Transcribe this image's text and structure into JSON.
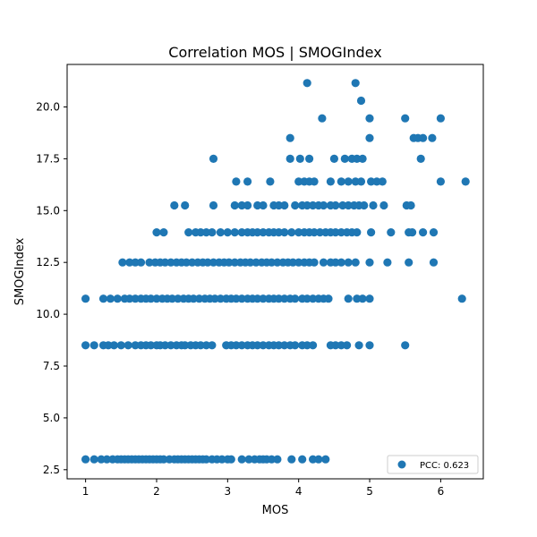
{
  "chart_data": {
    "type": "scatter",
    "title": "Correlation MOS | SMOGIndex",
    "xlabel": "MOS",
    "ylabel": "SMOGIndex",
    "xlim": [
      0.74,
      6.6
    ],
    "ylim": [
      2.06,
      22.05
    ],
    "xticks": [
      "1",
      "2",
      "3",
      "4",
      "5",
      "6"
    ],
    "yticks": [
      "2.5",
      "5.0",
      "7.5",
      "10.0",
      "12.5",
      "15.0",
      "17.5",
      "20.0"
    ],
    "grid": false,
    "legend": {
      "placement": "bottom-right",
      "entries": [
        "PCC: 0.623"
      ]
    },
    "color": "#1f77b4",
    "series": [
      {
        "points": [
          [
            1.0,
            3.0
          ],
          [
            1.12,
            3.0
          ],
          [
            1.22,
            3.0
          ],
          [
            1.3,
            3.0
          ],
          [
            1.38,
            3.0
          ],
          [
            1.45,
            3.0
          ],
          [
            1.5,
            3.0
          ],
          [
            1.55,
            3.0
          ],
          [
            1.6,
            3.0
          ],
          [
            1.65,
            3.0
          ],
          [
            1.7,
            3.0
          ],
          [
            1.75,
            3.0
          ],
          [
            1.8,
            3.0
          ],
          [
            1.85,
            3.0
          ],
          [
            1.9,
            3.0
          ],
          [
            1.95,
            3.0
          ],
          [
            2.0,
            3.0
          ],
          [
            2.05,
            3.0
          ],
          [
            2.1,
            3.0
          ],
          [
            2.18,
            3.0
          ],
          [
            2.25,
            3.0
          ],
          [
            2.3,
            3.0
          ],
          [
            2.35,
            3.0
          ],
          [
            2.4,
            3.0
          ],
          [
            2.45,
            3.0
          ],
          [
            2.5,
            3.0
          ],
          [
            2.55,
            3.0
          ],
          [
            2.6,
            3.0
          ],
          [
            2.65,
            3.0
          ],
          [
            2.7,
            3.0
          ],
          [
            2.78,
            3.0
          ],
          [
            2.85,
            3.0
          ],
          [
            2.92,
            3.0
          ],
          [
            3.0,
            3.0
          ],
          [
            3.05,
            3.0
          ],
          [
            3.2,
            3.0
          ],
          [
            3.3,
            3.0
          ],
          [
            3.38,
            3.0
          ],
          [
            3.45,
            3.0
          ],
          [
            3.5,
            3.0
          ],
          [
            3.55,
            3.0
          ],
          [
            3.62,
            3.0
          ],
          [
            3.7,
            3.0
          ],
          [
            3.9,
            3.0
          ],
          [
            4.05,
            3.0
          ],
          [
            4.2,
            3.0
          ],
          [
            4.28,
            3.0
          ],
          [
            4.38,
            3.0
          ],
          [
            1.0,
            8.5
          ],
          [
            1.12,
            8.5
          ],
          [
            1.25,
            8.5
          ],
          [
            1.32,
            8.5
          ],
          [
            1.4,
            8.5
          ],
          [
            1.5,
            8.5
          ],
          [
            1.6,
            8.5
          ],
          [
            1.7,
            8.5
          ],
          [
            1.78,
            8.5
          ],
          [
            1.85,
            8.5
          ],
          [
            1.92,
            8.5
          ],
          [
            2.0,
            8.5
          ],
          [
            2.05,
            8.5
          ],
          [
            2.12,
            8.5
          ],
          [
            2.2,
            8.5
          ],
          [
            2.28,
            8.5
          ],
          [
            2.35,
            8.5
          ],
          [
            2.4,
            8.5
          ],
          [
            2.48,
            8.5
          ],
          [
            2.55,
            8.5
          ],
          [
            2.62,
            8.5
          ],
          [
            2.7,
            8.5
          ],
          [
            2.78,
            8.5
          ],
          [
            2.98,
            8.5
          ],
          [
            3.05,
            8.5
          ],
          [
            3.12,
            8.5
          ],
          [
            3.2,
            8.5
          ],
          [
            3.28,
            8.5
          ],
          [
            3.35,
            8.5
          ],
          [
            3.42,
            8.5
          ],
          [
            3.5,
            8.5
          ],
          [
            3.58,
            8.5
          ],
          [
            3.65,
            8.5
          ],
          [
            3.72,
            8.5
          ],
          [
            3.8,
            8.5
          ],
          [
            3.88,
            8.5
          ],
          [
            3.95,
            8.5
          ],
          [
            4.05,
            8.5
          ],
          [
            4.12,
            8.5
          ],
          [
            4.2,
            8.5
          ],
          [
            4.45,
            8.5
          ],
          [
            4.52,
            8.5
          ],
          [
            4.6,
            8.5
          ],
          [
            4.68,
            8.5
          ],
          [
            4.85,
            8.5
          ],
          [
            5.0,
            8.5
          ],
          [
            5.5,
            8.5
          ],
          [
            1.0,
            10.75
          ],
          [
            1.25,
            10.75
          ],
          [
            1.35,
            10.75
          ],
          [
            1.45,
            10.75
          ],
          [
            1.55,
            10.75
          ],
          [
            1.62,
            10.75
          ],
          [
            1.7,
            10.75
          ],
          [
            1.78,
            10.75
          ],
          [
            1.85,
            10.75
          ],
          [
            1.92,
            10.75
          ],
          [
            2.0,
            10.75
          ],
          [
            2.08,
            10.75
          ],
          [
            2.15,
            10.75
          ],
          [
            2.22,
            10.75
          ],
          [
            2.3,
            10.75
          ],
          [
            2.38,
            10.75
          ],
          [
            2.45,
            10.75
          ],
          [
            2.52,
            10.75
          ],
          [
            2.6,
            10.75
          ],
          [
            2.68,
            10.75
          ],
          [
            2.75,
            10.75
          ],
          [
            2.82,
            10.75
          ],
          [
            2.9,
            10.75
          ],
          [
            2.98,
            10.75
          ],
          [
            3.05,
            10.75
          ],
          [
            3.12,
            10.75
          ],
          [
            3.2,
            10.75
          ],
          [
            3.28,
            10.75
          ],
          [
            3.35,
            10.75
          ],
          [
            3.42,
            10.75
          ],
          [
            3.5,
            10.75
          ],
          [
            3.58,
            10.75
          ],
          [
            3.65,
            10.75
          ],
          [
            3.72,
            10.75
          ],
          [
            3.8,
            10.75
          ],
          [
            3.88,
            10.75
          ],
          [
            3.95,
            10.75
          ],
          [
            4.05,
            10.75
          ],
          [
            4.12,
            10.75
          ],
          [
            4.2,
            10.75
          ],
          [
            4.28,
            10.75
          ],
          [
            4.35,
            10.75
          ],
          [
            4.42,
            10.75
          ],
          [
            4.7,
            10.75
          ],
          [
            4.82,
            10.75
          ],
          [
            4.9,
            10.75
          ],
          [
            5.0,
            10.75
          ],
          [
            6.3,
            10.75
          ],
          [
            1.52,
            12.5
          ],
          [
            1.62,
            12.5
          ],
          [
            1.7,
            12.5
          ],
          [
            1.78,
            12.5
          ],
          [
            1.9,
            12.5
          ],
          [
            1.98,
            12.5
          ],
          [
            2.05,
            12.5
          ],
          [
            2.12,
            12.5
          ],
          [
            2.2,
            12.5
          ],
          [
            2.28,
            12.5
          ],
          [
            2.35,
            12.5
          ],
          [
            2.42,
            12.5
          ],
          [
            2.5,
            12.5
          ],
          [
            2.58,
            12.5
          ],
          [
            2.65,
            12.5
          ],
          [
            2.72,
            12.5
          ],
          [
            2.8,
            12.5
          ],
          [
            2.88,
            12.5
          ],
          [
            2.95,
            12.5
          ],
          [
            3.02,
            12.5
          ],
          [
            3.1,
            12.5
          ],
          [
            3.18,
            12.5
          ],
          [
            3.25,
            12.5
          ],
          [
            3.32,
            12.5
          ],
          [
            3.4,
            12.5
          ],
          [
            3.48,
            12.5
          ],
          [
            3.55,
            12.5
          ],
          [
            3.62,
            12.5
          ],
          [
            3.7,
            12.5
          ],
          [
            3.78,
            12.5
          ],
          [
            3.85,
            12.5
          ],
          [
            3.92,
            12.5
          ],
          [
            4.0,
            12.5
          ],
          [
            4.08,
            12.5
          ],
          [
            4.15,
            12.5
          ],
          [
            4.22,
            12.5
          ],
          [
            4.35,
            12.5
          ],
          [
            4.45,
            12.5
          ],
          [
            4.52,
            12.5
          ],
          [
            4.6,
            12.5
          ],
          [
            4.7,
            12.5
          ],
          [
            4.8,
            12.5
          ],
          [
            5.0,
            12.5
          ],
          [
            5.25,
            12.5
          ],
          [
            5.55,
            12.5
          ],
          [
            5.9,
            12.5
          ],
          [
            2.0,
            13.95
          ],
          [
            2.1,
            13.95
          ],
          [
            2.45,
            13.95
          ],
          [
            2.55,
            13.95
          ],
          [
            2.62,
            13.95
          ],
          [
            2.7,
            13.95
          ],
          [
            2.78,
            13.95
          ],
          [
            2.9,
            13.95
          ],
          [
            3.0,
            13.95
          ],
          [
            3.1,
            13.95
          ],
          [
            3.2,
            13.95
          ],
          [
            3.28,
            13.95
          ],
          [
            3.35,
            13.95
          ],
          [
            3.42,
            13.95
          ],
          [
            3.5,
            13.95
          ],
          [
            3.58,
            13.95
          ],
          [
            3.65,
            13.95
          ],
          [
            3.72,
            13.95
          ],
          [
            3.8,
            13.95
          ],
          [
            3.9,
            13.95
          ],
          [
            4.0,
            13.95
          ],
          [
            4.08,
            13.95
          ],
          [
            4.15,
            13.95
          ],
          [
            4.22,
            13.95
          ],
          [
            4.3,
            13.95
          ],
          [
            4.38,
            13.95
          ],
          [
            4.45,
            13.95
          ],
          [
            4.52,
            13.95
          ],
          [
            4.6,
            13.95
          ],
          [
            4.68,
            13.95
          ],
          [
            4.75,
            13.95
          ],
          [
            4.82,
            13.95
          ],
          [
            5.02,
            13.95
          ],
          [
            5.3,
            13.95
          ],
          [
            5.55,
            13.95
          ],
          [
            5.6,
            13.95
          ],
          [
            5.75,
            13.95
          ],
          [
            5.9,
            13.95
          ],
          [
            2.25,
            15.25
          ],
          [
            2.4,
            15.25
          ],
          [
            2.8,
            15.25
          ],
          [
            3.1,
            15.25
          ],
          [
            3.2,
            15.25
          ],
          [
            3.28,
            15.25
          ],
          [
            3.42,
            15.25
          ],
          [
            3.5,
            15.25
          ],
          [
            3.65,
            15.25
          ],
          [
            3.72,
            15.25
          ],
          [
            3.8,
            15.25
          ],
          [
            3.95,
            15.25
          ],
          [
            4.05,
            15.25
          ],
          [
            4.12,
            15.25
          ],
          [
            4.2,
            15.25
          ],
          [
            4.28,
            15.25
          ],
          [
            4.35,
            15.25
          ],
          [
            4.45,
            15.25
          ],
          [
            4.52,
            15.25
          ],
          [
            4.62,
            15.25
          ],
          [
            4.7,
            15.25
          ],
          [
            4.78,
            15.25
          ],
          [
            4.85,
            15.25
          ],
          [
            4.92,
            15.25
          ],
          [
            5.05,
            15.25
          ],
          [
            5.2,
            15.25
          ],
          [
            5.52,
            15.25
          ],
          [
            5.58,
            15.25
          ],
          [
            3.12,
            16.4
          ],
          [
            3.28,
            16.4
          ],
          [
            3.6,
            16.4
          ],
          [
            4.0,
            16.4
          ],
          [
            4.08,
            16.4
          ],
          [
            4.15,
            16.4
          ],
          [
            4.22,
            16.4
          ],
          [
            4.45,
            16.4
          ],
          [
            4.6,
            16.4
          ],
          [
            4.7,
            16.4
          ],
          [
            4.8,
            16.4
          ],
          [
            4.88,
            16.4
          ],
          [
            5.02,
            16.4
          ],
          [
            5.1,
            16.4
          ],
          [
            5.18,
            16.4
          ],
          [
            6.0,
            16.4
          ],
          [
            6.35,
            16.4
          ],
          [
            2.8,
            17.5
          ],
          [
            3.88,
            17.5
          ],
          [
            4.02,
            17.5
          ],
          [
            4.15,
            17.5
          ],
          [
            4.5,
            17.5
          ],
          [
            4.65,
            17.5
          ],
          [
            4.75,
            17.5
          ],
          [
            4.82,
            17.5
          ],
          [
            4.9,
            17.5
          ],
          [
            5.72,
            17.5
          ],
          [
            3.88,
            18.5
          ],
          [
            5.0,
            18.5
          ],
          [
            5.62,
            18.5
          ],
          [
            5.68,
            18.5
          ],
          [
            5.75,
            18.5
          ],
          [
            5.88,
            18.5
          ],
          [
            4.33,
            19.45
          ],
          [
            5.0,
            19.45
          ],
          [
            5.5,
            19.45
          ],
          [
            6.0,
            19.45
          ],
          [
            4.88,
            20.3
          ],
          [
            4.12,
            21.15
          ],
          [
            4.8,
            21.15
          ]
        ]
      }
    ]
  }
}
